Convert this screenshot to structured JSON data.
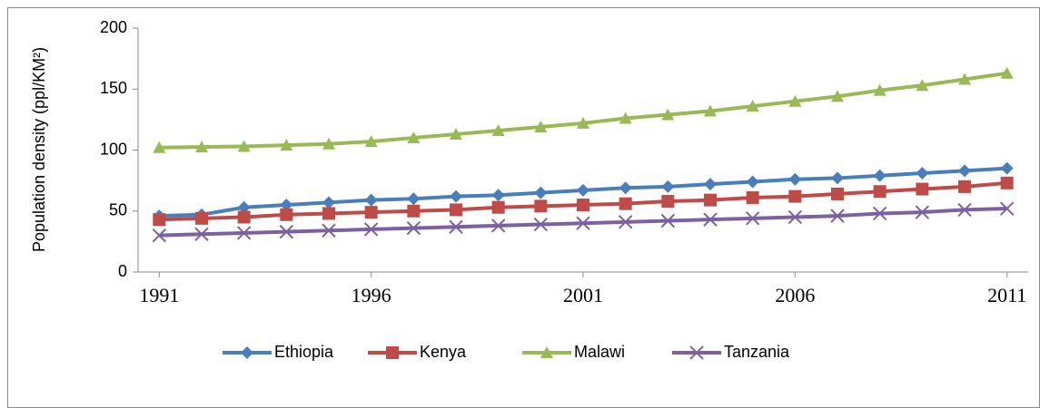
{
  "chart_data": {
    "type": "line",
    "y_label": "Population density (ppl/KM²)",
    "x": [
      1991,
      1992,
      1993,
      1994,
      1995,
      1996,
      1997,
      1998,
      1999,
      2000,
      2001,
      2002,
      2003,
      2004,
      2005,
      2006,
      2007,
      2008,
      2009,
      2010,
      2011
    ],
    "xlim": [
      1990.5,
      2011.5
    ],
    "xticks": [
      1991,
      1996,
      2001,
      2006,
      2011
    ],
    "ylim": [
      0,
      200
    ],
    "yticks": [
      0,
      50,
      100,
      150,
      200
    ],
    "grid": false,
    "legend": "bottom",
    "series": [
      {
        "name": "Ethiopia",
        "color": "#4a7ebb",
        "marker": "diamond",
        "values": [
          46,
          47,
          53,
          55,
          57,
          59,
          60,
          62,
          63,
          65,
          67,
          69,
          70,
          72,
          74,
          76,
          77,
          79,
          81,
          83,
          85
        ]
      },
      {
        "name": "Kenya",
        "color": "#be4b48",
        "marker": "square",
        "values": [
          43,
          44,
          45,
          47,
          48,
          49,
          50,
          51,
          53,
          54,
          55,
          56,
          58,
          59,
          61,
          62,
          64,
          66,
          68,
          70,
          73
        ]
      },
      {
        "name": "Malawi",
        "color": "#98b954",
        "marker": "triangle",
        "values": [
          102,
          102.5,
          103,
          104,
          105,
          107,
          110,
          113,
          116,
          119,
          122,
          126,
          129,
          132,
          136,
          140,
          144,
          149,
          153,
          158,
          163
        ]
      },
      {
        "name": "Tanzania",
        "color": "#7d60a0",
        "marker": "x",
        "values": [
          30,
          31,
          32,
          33,
          34,
          35,
          36,
          37,
          38,
          39,
          40,
          41,
          42,
          43,
          44,
          45,
          46,
          48,
          49,
          51,
          52
        ]
      }
    ]
  }
}
